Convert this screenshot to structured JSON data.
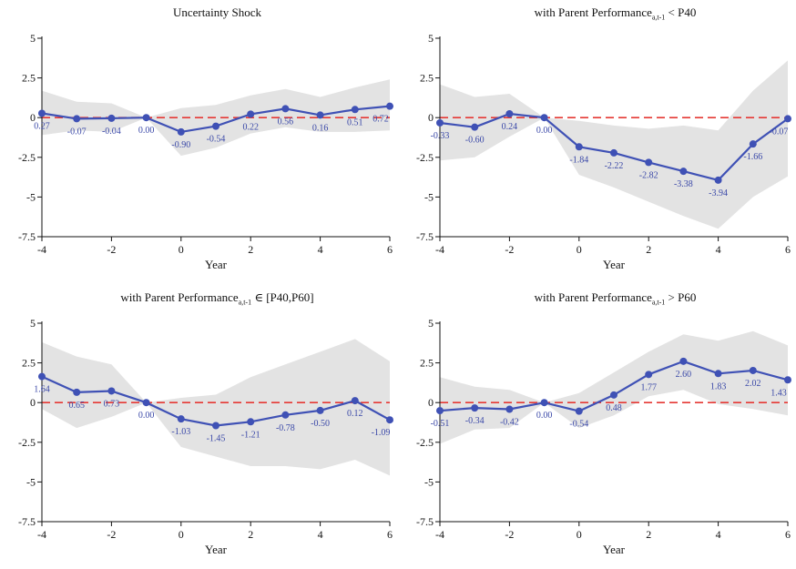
{
  "colors": {
    "line": "#3f51b5",
    "band": "#e3e3e3",
    "zero_line": "#e53935",
    "label": "#3a48a8",
    "axis": "#111111"
  },
  "chart_data": [
    {
      "type": "line",
      "title": "Uncertainty Shock",
      "title_main": "Uncertainty Shock",
      "title_sub": "",
      "title_tail": "",
      "xlabel": "Year",
      "ylabel": "",
      "xlim": [
        -4,
        6
      ],
      "ylim": [
        -7.5,
        5
      ],
      "x_ticks": [
        "-4",
        "-2",
        "0",
        "2",
        "4",
        "6"
      ],
      "y_ticks": [
        "5",
        "2.5",
        "0",
        "-2.5",
        "-5",
        "-7.5"
      ],
      "x": [
        -4,
        -3,
        -2,
        -1,
        0,
        1,
        2,
        3,
        4,
        5,
        6
      ],
      "values": [
        0.27,
        -0.07,
        -0.04,
        0.0,
        -0.9,
        -0.54,
        0.22,
        0.56,
        0.16,
        0.51,
        0.72
      ],
      "data_labels": [
        "0.27",
        "-0.07",
        "-0.04",
        "0.00",
        "-0.90",
        "-0.54",
        "0.22",
        "0.56",
        "0.16",
        "0.51",
        "0.72"
      ],
      "ci_lower": [
        -1.1,
        -0.8,
        -0.9,
        0.0,
        -2.4,
        -1.9,
        -1.0,
        -0.6,
        -0.9,
        -0.9,
        -0.8
      ],
      "ci_upper": [
        1.7,
        1.0,
        0.9,
        0.0,
        0.6,
        0.8,
        1.4,
        1.8,
        1.3,
        1.9,
        2.4
      ],
      "reference_line": 0
    },
    {
      "type": "line",
      "title": "with Parent Performance a,t-1 < P40",
      "title_main": "with Parent Performance",
      "title_sub": "a,t-1",
      "title_tail": " < P40",
      "xlabel": "Year",
      "ylabel": "",
      "xlim": [
        -4,
        6
      ],
      "ylim": [
        -7.5,
        5
      ],
      "x_ticks": [
        "-4",
        "-2",
        "0",
        "2",
        "4",
        "6"
      ],
      "y_ticks": [
        "5",
        "2.5",
        "0",
        "-2.5",
        "-5",
        "-7.5"
      ],
      "x": [
        -4,
        -3,
        -2,
        -1,
        0,
        1,
        2,
        3,
        4,
        5,
        6
      ],
      "values": [
        -0.33,
        -0.6,
        0.24,
        0.0,
        -1.84,
        -2.22,
        -2.82,
        -3.38,
        -3.94,
        -1.66,
        -0.07
      ],
      "data_labels": [
        "-0.33",
        "-0.60",
        "0.24",
        "0.00",
        "-1.84",
        "-2.22",
        "-2.82",
        "-3.38",
        "-3.94",
        "-1.66",
        "-0.07"
      ],
      "ci_lower": [
        -2.7,
        -2.5,
        -1.2,
        0.0,
        -3.6,
        -4.4,
        -5.3,
        -6.2,
        -7.0,
        -5.0,
        -3.7
      ],
      "ci_upper": [
        2.1,
        1.3,
        1.5,
        0.0,
        -0.2,
        -0.5,
        -0.7,
        -0.5,
        -0.8,
        1.7,
        3.6
      ],
      "reference_line": 0
    },
    {
      "type": "line",
      "title": "with Parent Performance a,t-1 ∈ [P40,P60]",
      "title_main": "with Parent Performance",
      "title_sub": "a,t-1",
      "title_tail": " ∈ [P40,P60]",
      "xlabel": "Year",
      "ylabel": "",
      "xlim": [
        -4,
        6
      ],
      "ylim": [
        -7.5,
        5
      ],
      "x_ticks": [
        "-4",
        "-2",
        "0",
        "2",
        "4",
        "6"
      ],
      "y_ticks": [
        "5",
        "2.5",
        "0",
        "-2.5",
        "-5",
        "-7.5"
      ],
      "x": [
        -4,
        -3,
        -2,
        -1,
        0,
        1,
        2,
        3,
        4,
        5,
        6
      ],
      "values": [
        1.64,
        0.65,
        0.73,
        0.0,
        -1.03,
        -1.45,
        -1.21,
        -0.78,
        -0.5,
        0.12,
        -1.09
      ],
      "data_labels": [
        "1.64",
        "0.65",
        "0.73",
        "0.00",
        "-1.03",
        "-1.45",
        "-1.21",
        "-0.78",
        "-0.50",
        "0.12",
        "-1.09"
      ],
      "ci_lower": [
        -0.4,
        -1.6,
        -0.9,
        0.0,
        -2.8,
        -3.4,
        -4.0,
        -4.0,
        -4.2,
        -3.6,
        -4.6
      ],
      "ci_upper": [
        3.8,
        2.9,
        2.4,
        0.0,
        0.3,
        0.5,
        1.6,
        2.4,
        3.2,
        4.0,
        2.6
      ],
      "reference_line": 0
    },
    {
      "type": "line",
      "title": "with Parent Performance a,t-1 > P60",
      "title_main": "with Parent Performance",
      "title_sub": "a,t-1",
      "title_tail": " > P60",
      "xlabel": "Year",
      "ylabel": "",
      "xlim": [
        -4,
        6
      ],
      "ylim": [
        -7.5,
        5
      ],
      "x_ticks": [
        "-4",
        "-2",
        "0",
        "2",
        "4",
        "6"
      ],
      "y_ticks": [
        "5",
        "2.5",
        "0",
        "-2.5",
        "-5",
        "-7.5"
      ],
      "x": [
        -4,
        -3,
        -2,
        -1,
        0,
        1,
        2,
        3,
        4,
        5,
        6
      ],
      "values": [
        -0.51,
        -0.34,
        -0.42,
        0.0,
        -0.54,
        0.48,
        1.77,
        2.6,
        1.83,
        2.02,
        1.43
      ],
      "data_labels": [
        "-0.51",
        "-0.34",
        "-0.42",
        "0.00",
        "-0.54",
        "0.48",
        "1.77",
        "2.60",
        "1.83",
        "2.02",
        "1.43"
      ],
      "ci_lower": [
        -2.6,
        -1.7,
        -1.6,
        0.0,
        -1.6,
        -0.8,
        0.4,
        0.8,
        -0.1,
        -0.4,
        -0.8
      ],
      "ci_upper": [
        1.6,
        1.0,
        0.8,
        0.0,
        0.6,
        1.9,
        3.2,
        4.3,
        3.9,
        4.5,
        3.6
      ],
      "reference_line": 0
    }
  ]
}
